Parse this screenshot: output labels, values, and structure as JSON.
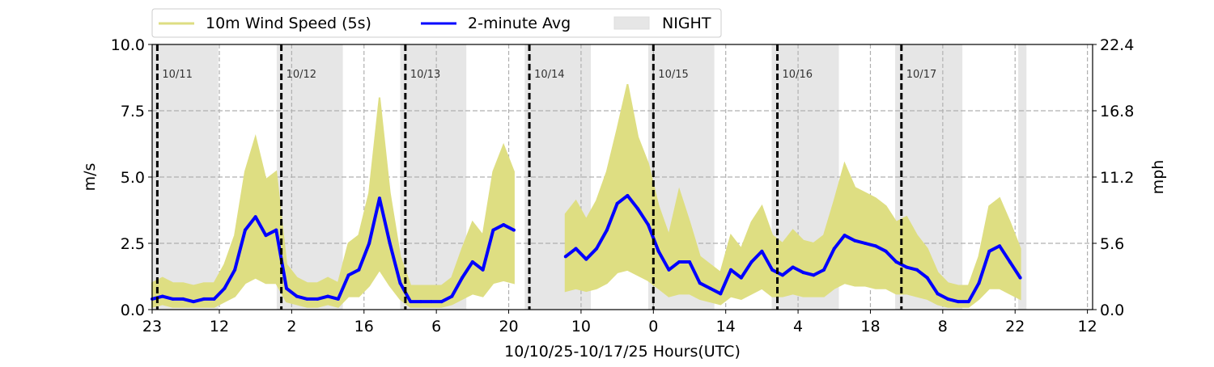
{
  "chart_data": {
    "type": "line",
    "xlabel": "10/10/25-10/17/25  Hours(UTC)",
    "ylabel_left": "m/s",
    "ylabel_right": "mph",
    "xlim": [
      0,
      182
    ],
    "ylim": [
      0,
      10
    ],
    "ylim_right": [
      0,
      22.4
    ],
    "x_unit": "hours since 10/10 23:00 UTC",
    "x_ticks": [
      {
        "h": 0,
        "label": "23"
      },
      {
        "h": 13,
        "label": "12"
      },
      {
        "h": 27,
        "label": "2"
      },
      {
        "h": 41,
        "label": "16"
      },
      {
        "h": 55,
        "label": "6"
      },
      {
        "h": 69,
        "label": "20"
      },
      {
        "h": 83,
        "label": "10"
      },
      {
        "h": 97,
        "label": "0"
      },
      {
        "h": 111,
        "label": "14"
      },
      {
        "h": 125,
        "label": "4"
      },
      {
        "h": 139,
        "label": "18"
      },
      {
        "h": 153,
        "label": "8"
      },
      {
        "h": 167,
        "label": "22"
      },
      {
        "h": 181,
        "label": "12"
      }
    ],
    "y_ticks_left": [
      "0.0",
      "2.5",
      "5.0",
      "7.5",
      "10.0"
    ],
    "y_ticks_right": [
      "0.0",
      "5.6",
      "11.2",
      "16.8",
      "22.4"
    ],
    "grid": true,
    "legend": {
      "placement": "top-left, above plot",
      "entries": [
        {
          "label": "10m Wind Speed (5s)",
          "color": "#dede82"
        },
        {
          "label": "2-minute Avg",
          "color": "#0000ff"
        },
        {
          "label": "NIGHT",
          "color": "#e6e6e6"
        }
      ]
    },
    "day_markers": [
      {
        "h": 1,
        "label": "10/11"
      },
      {
        "h": 25,
        "label": "10/12"
      },
      {
        "h": 49,
        "label": "10/13"
      },
      {
        "h": 73,
        "label": "10/14"
      },
      {
        "h": 97,
        "label": "10/15"
      },
      {
        "h": 121,
        "label": "10/16"
      },
      {
        "h": 145,
        "label": "10/17"
      }
    ],
    "night_periods": [
      [
        0,
        12.8
      ],
      [
        24.1,
        36.9
      ],
      [
        48.0,
        60.8
      ],
      [
        72.1,
        84.9
      ],
      [
        96.0,
        108.8
      ],
      [
        119.9,
        132.9
      ],
      [
        143.8,
        156.8
      ],
      [
        167.6,
        169.2
      ]
    ],
    "series_x_start": 0,
    "series_x_step": 2,
    "series": [
      {
        "name": "2-minute Avg",
        "color": "#0000ff",
        "values": [
          0.4,
          0.5,
          0.4,
          0.4,
          0.3,
          0.4,
          0.4,
          0.8,
          1.5,
          3.0,
          3.5,
          2.8,
          3.0,
          0.8,
          0.5,
          0.4,
          0.4,
          0.5,
          0.4,
          1.3,
          1.5,
          2.5,
          4.2,
          2.5,
          1.0,
          0.3,
          0.3,
          0.3,
          0.3,
          0.5,
          1.2,
          1.8,
          1.5,
          3.0,
          3.2,
          3.0,
          null,
          null,
          null,
          null,
          2.0,
          2.3,
          1.9,
          2.3,
          3.0,
          4.0,
          4.3,
          3.8,
          3.2,
          2.2,
          1.5,
          1.8,
          1.8,
          1.0,
          0.8,
          0.6,
          1.5,
          1.2,
          1.8,
          2.2,
          1.5,
          1.3,
          1.6,
          1.4,
          1.3,
          1.5,
          2.3,
          2.8,
          2.6,
          2.5,
          2.4,
          2.2,
          1.8,
          1.6,
          1.5,
          1.2,
          0.6,
          0.4,
          0.3,
          0.3,
          1.0,
          2.2,
          2.4,
          1.8,
          1.2
        ]
      },
      {
        "name": "10m Wind Speed (5s) max",
        "color": "#dede82",
        "values": [
          1.0,
          1.2,
          1.0,
          1.0,
          0.9,
          1.0,
          1.0,
          1.7,
          2.8,
          5.2,
          6.5,
          4.9,
          5.2,
          1.7,
          1.2,
          1.0,
          1.0,
          1.2,
          1.0,
          2.5,
          2.8,
          4.4,
          8.0,
          4.4,
          2.0,
          0.9,
          0.9,
          0.9,
          0.9,
          1.2,
          2.3,
          3.3,
          2.8,
          5.2,
          6.2,
          5.2,
          null,
          null,
          null,
          null,
          3.6,
          4.1,
          3.4,
          4.1,
          5.2,
          6.8,
          8.5,
          6.5,
          5.5,
          3.9,
          2.8,
          4.5,
          3.3,
          2.0,
          1.7,
          1.4,
          2.8,
          2.3,
          3.3,
          3.9,
          2.8,
          2.5,
          3.0,
          2.6,
          2.5,
          2.8,
          4.1,
          5.5,
          4.6,
          4.4,
          4.2,
          3.9,
          3.3,
          3.5,
          2.8,
          2.3,
          1.4,
          1.0,
          0.9,
          0.9,
          2.0,
          3.9,
          4.2,
          3.3,
          2.3
        ]
      },
      {
        "name": "10m Wind Speed (5s) min",
        "color": "#dede82",
        "values": [
          0.1,
          0.2,
          0.1,
          0.1,
          0.1,
          0.1,
          0.1,
          0.3,
          0.5,
          1.0,
          1.2,
          1.0,
          1.0,
          0.3,
          0.2,
          0.1,
          0.1,
          0.2,
          0.1,
          0.5,
          0.5,
          0.9,
          1.5,
          0.9,
          0.4,
          0.1,
          0.1,
          0.1,
          0.1,
          0.2,
          0.4,
          0.6,
          0.5,
          1.0,
          1.1,
          1.0,
          null,
          null,
          null,
          null,
          0.7,
          0.8,
          0.7,
          0.8,
          1.0,
          1.4,
          1.5,
          1.3,
          1.1,
          0.8,
          0.5,
          0.6,
          0.6,
          0.4,
          0.3,
          0.2,
          0.5,
          0.4,
          0.6,
          0.8,
          0.5,
          0.5,
          0.6,
          0.5,
          0.5,
          0.5,
          0.8,
          1.0,
          0.9,
          0.9,
          0.8,
          0.8,
          0.6,
          0.6,
          0.5,
          0.4,
          0.2,
          0.1,
          0.1,
          0.1,
          0.4,
          0.8,
          0.8,
          0.6,
          0.4
        ]
      }
    ]
  }
}
